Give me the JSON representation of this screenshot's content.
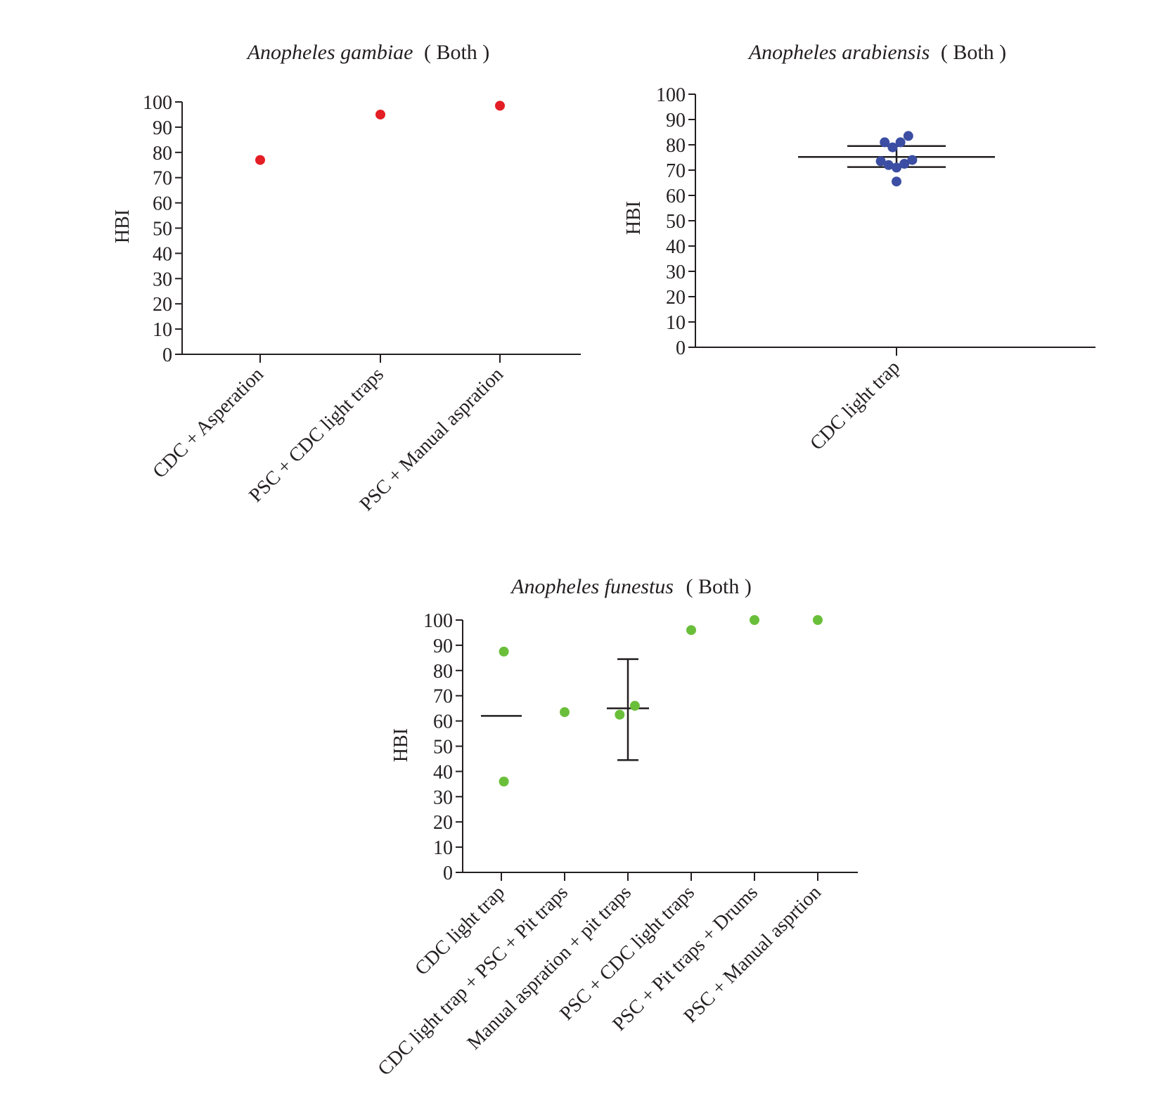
{
  "chart_data": [
    {
      "type": "scatter",
      "title_italic": "Anopheles gambiae",
      "title_rest": "( Both )",
      "ylabel": "HBI",
      "ylim": [
        0,
        100
      ],
      "yticks": [
        "0",
        "10",
        "20",
        "30",
        "40",
        "50",
        "60",
        "70",
        "80",
        "90",
        "100"
      ],
      "color": "#e31e24",
      "categories": [
        "CDC + Asperation",
        "PSC + CDC light traps",
        "PSC + Manual aspration"
      ],
      "points": [
        {
          "category": 0,
          "y": 77
        },
        {
          "category": 1,
          "y": 95
        },
        {
          "category": 2,
          "y": 98.5
        }
      ],
      "summary": []
    },
    {
      "type": "scatter",
      "title_italic": "Anopheles arabiensis",
      "title_rest": "( Both )",
      "ylabel": "HBI",
      "ylim": [
        0,
        100
      ],
      "yticks": [
        "0",
        "10",
        "20",
        "30",
        "40",
        "50",
        "60",
        "70",
        "80",
        "90",
        "100"
      ],
      "color": "#3b4ea3",
      "categories": [
        "CDC light trap"
      ],
      "points": [
        {
          "category": 0,
          "y": 81,
          "jitter": -0.12
        },
        {
          "category": 0,
          "y": 79,
          "jitter": -0.04
        },
        {
          "category": 0,
          "y": 81,
          "jitter": 0.04
        },
        {
          "category": 0,
          "y": 83.5,
          "jitter": 0.12
        },
        {
          "category": 0,
          "y": 73.5,
          "jitter": -0.16
        },
        {
          "category": 0,
          "y": 72,
          "jitter": -0.08
        },
        {
          "category": 0,
          "y": 71,
          "jitter": 0
        },
        {
          "category": 0,
          "y": 72.5,
          "jitter": 0.08
        },
        {
          "category": 0,
          "y": 74,
          "jitter": 0.16
        },
        {
          "category": 0,
          "y": 65.5,
          "jitter": 0
        }
      ],
      "summary": [
        {
          "category": 0,
          "mean": 75.2,
          "lower": 71.2,
          "upper": 79.5
        }
      ]
    },
    {
      "type": "scatter",
      "title_italic": "Anopheles funestus",
      "title_rest": "( Both )",
      "ylabel": "HBI",
      "ylim": [
        0,
        100
      ],
      "yticks": [
        "0",
        "10",
        "20",
        "30",
        "40",
        "50",
        "60",
        "70",
        "80",
        "90",
        "100"
      ],
      "color": "#6abf3a",
      "categories": [
        "CDC light trap",
        "CDC light trap + PSC + Pit traps",
        "Manual aspration + pit traps",
        "PSC + CDC light traps",
        "PSC + Pit traps + Drums",
        "PSC + Manual asprtion"
      ],
      "points": [
        {
          "category": 0,
          "y": 87.5,
          "jitter": 0.04
        },
        {
          "category": 0,
          "y": 36,
          "jitter": 0.04
        },
        {
          "category": 1,
          "y": 63.5,
          "jitter": 0
        },
        {
          "category": 2,
          "y": 62.5,
          "jitter": -0.13
        },
        {
          "category": 2,
          "y": 66,
          "jitter": 0.11
        },
        {
          "category": 3,
          "y": 96,
          "jitter": 0
        },
        {
          "category": 4,
          "y": 100,
          "jitter": 0
        },
        {
          "category": 5,
          "y": 100,
          "jitter": 0
        }
      ],
      "summary": [
        {
          "category": 0,
          "mean": 62
        },
        {
          "category": 2,
          "mean": 65,
          "lower": 44.5,
          "upper": 84.5
        }
      ]
    }
  ]
}
